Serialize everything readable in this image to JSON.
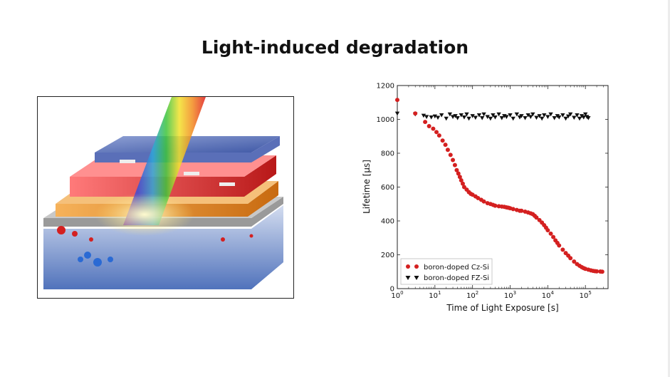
{
  "slide": {
    "title": "Light-induced degradation"
  },
  "illustration": {
    "description_icon": "solar-cell-light-illustration"
  },
  "chart_data": {
    "type": "scatter",
    "xscale": "log",
    "xlim": [
      1,
      400000
    ],
    "ylim": [
      0,
      1200
    ],
    "xlabel": "Time of Light Exposure [s]",
    "ylabel": "Lifetime [μs]",
    "grid": false,
    "legend_position": "lower-left",
    "x_ticks": [
      {
        "value": 1,
        "mantissa": "10",
        "exp": "0"
      },
      {
        "value": 10,
        "mantissa": "10",
        "exp": "1"
      },
      {
        "value": 100,
        "mantissa": "10",
        "exp": "2"
      },
      {
        "value": 1000,
        "mantissa": "10",
        "exp": "3"
      },
      {
        "value": 10000,
        "mantissa": "10",
        "exp": "4"
      },
      {
        "value": 100000,
        "mantissa": "10",
        "exp": "5"
      }
    ],
    "y_ticks": [
      "0",
      "200",
      "400",
      "600",
      "800",
      "1000",
      "1200"
    ],
    "series": [
      {
        "name": "boron-doped Cz-Si",
        "color": "#d42020",
        "marker": "circle",
        "points": [
          [
            1,
            1115
          ],
          [
            3,
            1035
          ],
          [
            5.5,
            985
          ],
          [
            7,
            960
          ],
          [
            9,
            945
          ],
          [
            11,
            925
          ],
          [
            13,
            905
          ],
          [
            16,
            875
          ],
          [
            19,
            850
          ],
          [
            22,
            820
          ],
          [
            26,
            790
          ],
          [
            30,
            760
          ],
          [
            34,
            730
          ],
          [
            38,
            700
          ],
          [
            42,
            680
          ],
          [
            46,
            660
          ],
          [
            50,
            640
          ],
          [
            55,
            620
          ],
          [
            60,
            600
          ],
          [
            70,
            585
          ],
          [
            80,
            570
          ],
          [
            90,
            560
          ],
          [
            100,
            555
          ],
          [
            120,
            545
          ],
          [
            140,
            535
          ],
          [
            170,
            525
          ],
          [
            200,
            515
          ],
          [
            250,
            505
          ],
          [
            300,
            500
          ],
          [
            350,
            495
          ],
          [
            400,
            490
          ],
          [
            500,
            487
          ],
          [
            600,
            485
          ],
          [
            700,
            483
          ],
          [
            800,
            480
          ],
          [
            900,
            478
          ],
          [
            1000,
            475
          ],
          [
            1200,
            470
          ],
          [
            1500,
            465
          ],
          [
            1800,
            460
          ],
          [
            2000,
            460
          ],
          [
            2500,
            455
          ],
          [
            3000,
            450
          ],
          [
            3500,
            445
          ],
          [
            4000,
            440
          ],
          [
            4500,
            430
          ],
          [
            5000,
            420
          ],
          [
            6000,
            405
          ],
          [
            7000,
            390
          ],
          [
            8000,
            375
          ],
          [
            9000,
            360
          ],
          [
            10000,
            345
          ],
          [
            12000,
            325
          ],
          [
            14000,
            305
          ],
          [
            16000,
            285
          ],
          [
            18000,
            270
          ],
          [
            20000,
            255
          ],
          [
            25000,
            230
          ],
          [
            30000,
            210
          ],
          [
            35000,
            195
          ],
          [
            40000,
            180
          ],
          [
            50000,
            160
          ],
          [
            60000,
            145
          ],
          [
            70000,
            135
          ],
          [
            80000,
            127
          ],
          [
            90000,
            121
          ],
          [
            100000,
            117
          ],
          [
            120000,
            112
          ],
          [
            140000,
            108
          ],
          [
            160000,
            105
          ],
          [
            180000,
            103
          ],
          [
            200000,
            102
          ],
          [
            250000,
            101
          ],
          [
            280000,
            100
          ]
        ]
      },
      {
        "name": "boron-doped FZ-Si",
        "color": "#111111",
        "marker": "triangle-down",
        "points": [
          [
            1,
            1035
          ],
          [
            3,
            1030
          ],
          [
            5,
            1022
          ],
          [
            6,
            1015
          ],
          [
            8,
            1012
          ],
          [
            10,
            1018
          ],
          [
            12,
            1010
          ],
          [
            15,
            1025
          ],
          [
            20,
            1005
          ],
          [
            25,
            1030
          ],
          [
            30,
            1015
          ],
          [
            35,
            1020
          ],
          [
            40,
            1008
          ],
          [
            50,
            1025
          ],
          [
            60,
            1012
          ],
          [
            70,
            1030
          ],
          [
            80,
            1005
          ],
          [
            100,
            1020
          ],
          [
            120,
            1010
          ],
          [
            150,
            1025
          ],
          [
            180,
            1008
          ],
          [
            200,
            1030
          ],
          [
            250,
            1015
          ],
          [
            300,
            1005
          ],
          [
            350,
            1025
          ],
          [
            400,
            1012
          ],
          [
            500,
            1030
          ],
          [
            600,
            1008
          ],
          [
            700,
            1020
          ],
          [
            800,
            1015
          ],
          [
            1000,
            1025
          ],
          [
            1200,
            1005
          ],
          [
            1500,
            1030
          ],
          [
            1800,
            1012
          ],
          [
            2000,
            1020
          ],
          [
            2500,
            1008
          ],
          [
            3000,
            1025
          ],
          [
            3500,
            1015
          ],
          [
            4000,
            1030
          ],
          [
            5000,
            1010
          ],
          [
            6000,
            1020
          ],
          [
            7000,
            1005
          ],
          [
            8000,
            1025
          ],
          [
            10000,
            1015
          ],
          [
            12000,
            1030
          ],
          [
            15000,
            1008
          ],
          [
            18000,
            1020
          ],
          [
            20000,
            1012
          ],
          [
            25000,
            1025
          ],
          [
            30000,
            1005
          ],
          [
            35000,
            1018
          ],
          [
            40000,
            1030
          ],
          [
            50000,
            1010
          ],
          [
            60000,
            1025
          ],
          [
            70000,
            1005
          ],
          [
            80000,
            1020
          ],
          [
            90000,
            1012
          ],
          [
            100000,
            1030
          ],
          [
            110000,
            1015
          ],
          [
            120000,
            1008
          ]
        ]
      }
    ]
  }
}
